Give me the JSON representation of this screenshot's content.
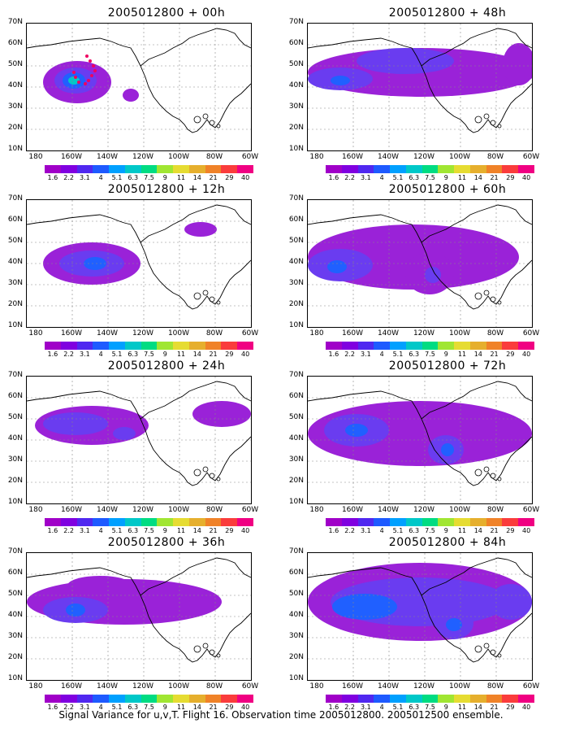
{
  "panels": [
    {
      "title": "2005012800 + 00h"
    },
    {
      "title": "2005012800 + 48h"
    },
    {
      "title": "2005012800 + 12h"
    },
    {
      "title": "2005012800 + 60h"
    },
    {
      "title": "2005012800 + 24h"
    },
    {
      "title": "2005012800 + 72h"
    },
    {
      "title": "2005012800 + 36h"
    },
    {
      "title": "2005012800 + 84h"
    }
  ],
  "lat_labels": [
    "70N",
    "60N",
    "50N",
    "40N",
    "30N",
    "20N",
    "10N"
  ],
  "lon_labels": [
    "180",
    "160W",
    "140W",
    "120W",
    "100W",
    "80W",
    "60W"
  ],
  "colorbar": {
    "labels": [
      "1.6",
      "2.2",
      "3.1",
      "4",
      "5.1",
      "6.3",
      "7.5",
      "9",
      "11",
      "14",
      "21",
      "29",
      "40"
    ],
    "colors": [
      "#a000c8",
      "#8000e0",
      "#5028f0",
      "#1e5aff",
      "#00a0ff",
      "#00c8c8",
      "#00dc82",
      "#a0e632",
      "#e6dc32",
      "#e6af2d",
      "#f08228",
      "#fa3c3c",
      "#f00082"
    ]
  },
  "caption": "Signal Variance for u,v,T. Flight 16. Observation time 2005012800. 2005012500 ensemble.",
  "colors": {
    "purple": "#9a22d8",
    "violet": "#6a3cf0",
    "blue": "#2060ff",
    "cyan": "#00c8c8",
    "track": "#f00060"
  }
}
